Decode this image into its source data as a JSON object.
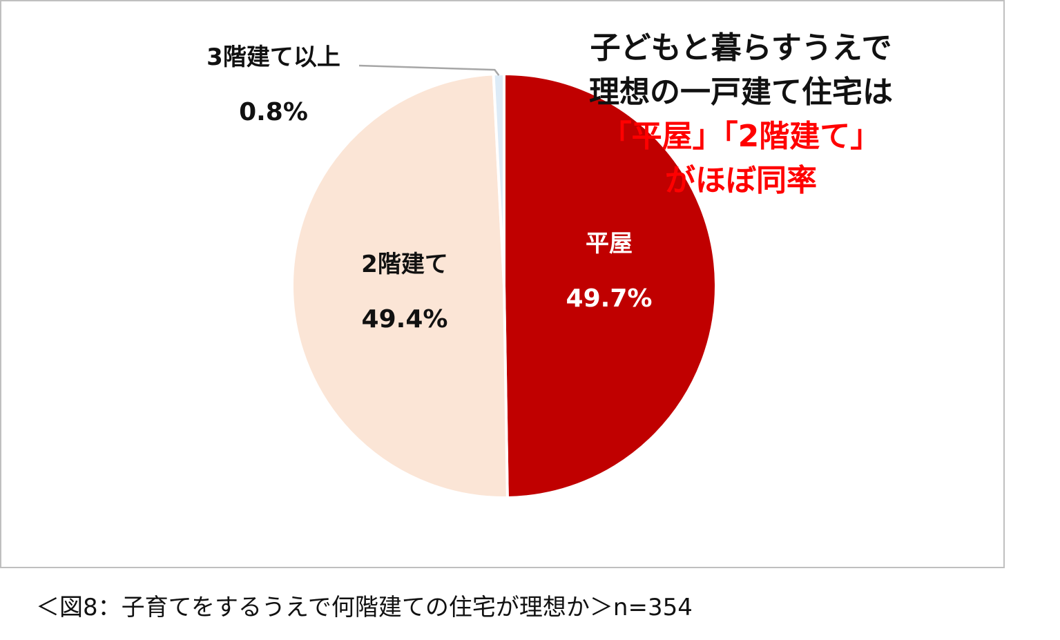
{
  "chart_data": {
    "type": "pie",
    "slices": [
      {
        "label": "平屋",
        "value": 49.7,
        "value_label": "49.7%",
        "color": "#c00000",
        "text_color": "#ffffff"
      },
      {
        "label": "2階建て",
        "value": 49.4,
        "value_label": "49.4%",
        "color": "#fbe5d6",
        "text_color": "#111111"
      },
      {
        "label": "3階建て以上",
        "value": 0.8,
        "value_label": "0.8%",
        "color": "#ddebf7",
        "text_color": "#111111"
      }
    ],
    "start": "top",
    "direction": "clockwise"
  },
  "headline": {
    "line1": "子どもと暮らすうえで",
    "line2": "理想の一戸建て住宅は",
    "line3": "「平屋」「2階建て」",
    "line4": "がほぼ同率",
    "dark_color": "#111111",
    "accent_color": "#ff0000"
  },
  "caption": "＜図8：子育てをするうえで何階建ての住宅が理想か＞n=354"
}
